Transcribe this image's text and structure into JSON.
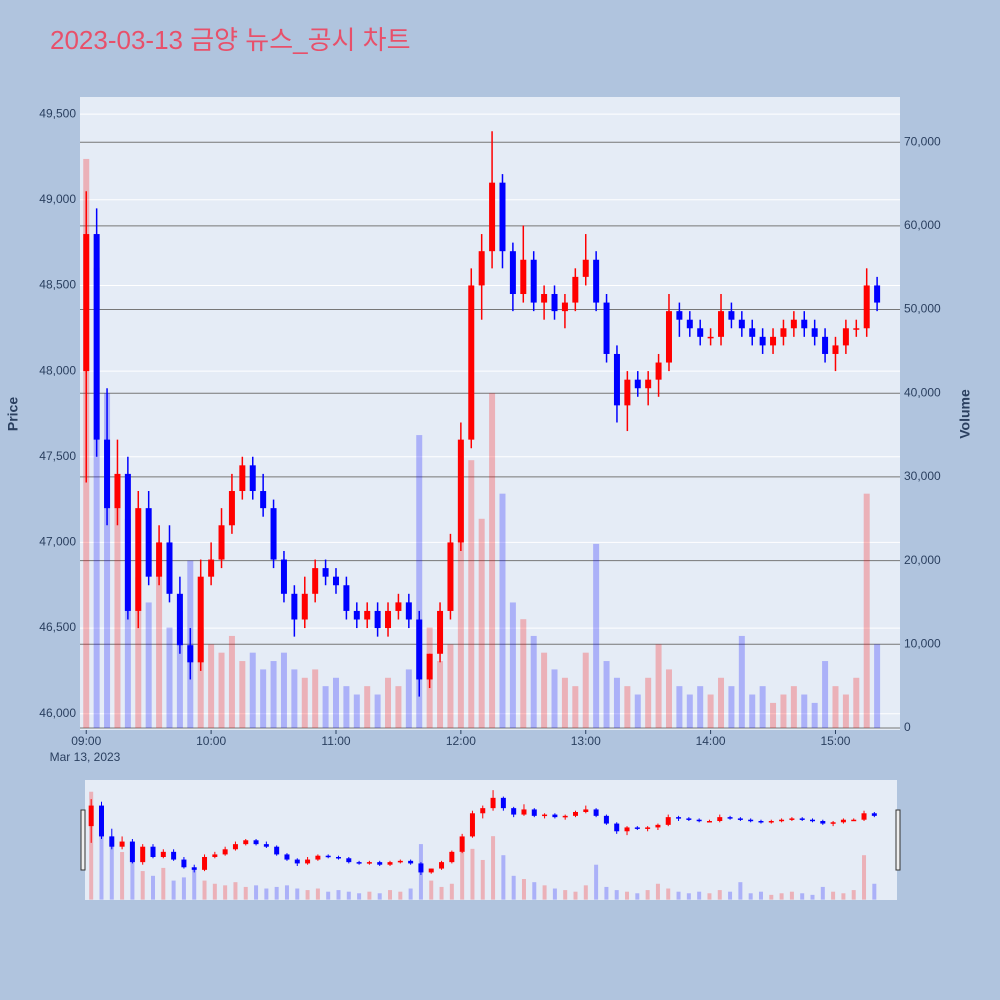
{
  "chart_data": {
    "type": "candlestick",
    "title": "2023-03-13 금양 뉴스_공시 차트",
    "y_label": "Price",
    "y2_label": "Volume",
    "x_date_label": "Mar 13, 2023",
    "increasing_color": "#ff0000",
    "decreasing_color": "#0000ff",
    "x": [
      "2023-03-13 09:00",
      "2023-03-13 09:05",
      "2023-03-13 09:10",
      "2023-03-13 09:15",
      "2023-03-13 09:20",
      "2023-03-13 09:25",
      "2023-03-13 09:30",
      "2023-03-13 09:35",
      "2023-03-13 09:40",
      "2023-03-13 09:45",
      "2023-03-13 09:50",
      "2023-03-13 09:55",
      "2023-03-13 10:00",
      "2023-03-13 10:05",
      "2023-03-13 10:10",
      "2023-03-13 10:15",
      "2023-03-13 10:20",
      "2023-03-13 10:25",
      "2023-03-13 10:30",
      "2023-03-13 10:35",
      "2023-03-13 10:40",
      "2023-03-13 10:45",
      "2023-03-13 10:50",
      "2023-03-13 10:55",
      "2023-03-13 11:00",
      "2023-03-13 11:05",
      "2023-03-13 11:10",
      "2023-03-13 11:15",
      "2023-03-13 11:20",
      "2023-03-13 11:25",
      "2023-03-13 11:30",
      "2023-03-13 11:35",
      "2023-03-13 11:40",
      "2023-03-13 11:45",
      "2023-03-13 11:50",
      "2023-03-13 11:55",
      "2023-03-13 12:00",
      "2023-03-13 12:05",
      "2023-03-13 12:10",
      "2023-03-13 12:15",
      "2023-03-13 12:20",
      "2023-03-13 12:25",
      "2023-03-13 12:30",
      "2023-03-13 12:35",
      "2023-03-13 12:40",
      "2023-03-13 12:45",
      "2023-03-13 12:50",
      "2023-03-13 12:55",
      "2023-03-13 13:00",
      "2023-03-13 13:05",
      "2023-03-13 13:10",
      "2023-03-13 13:15",
      "2023-03-13 13:20",
      "2023-03-13 13:25",
      "2023-03-13 13:30",
      "2023-03-13 13:35",
      "2023-03-13 13:40",
      "2023-03-13 13:45",
      "2023-03-13 13:50",
      "2023-03-13 13:55",
      "2023-03-13 14:00",
      "2023-03-13 14:05",
      "2023-03-13 14:10",
      "2023-03-13 14:15",
      "2023-03-13 14:20",
      "2023-03-13 14:25",
      "2023-03-13 14:30",
      "2023-03-13 14:35",
      "2023-03-13 14:40",
      "2023-03-13 14:45",
      "2023-03-13 14:50",
      "2023-03-13 14:55",
      "2023-03-13 15:00",
      "2023-03-13 15:05",
      "2023-03-13 15:10",
      "2023-03-13 15:15",
      "2023-03-13 15:20"
    ],
    "open": [
      48000,
      48800,
      47600,
      47200,
      47400,
      46600,
      47200,
      46800,
      47000,
      46700,
      46400,
      46300,
      46800,
      46900,
      47100,
      47300,
      47450,
      47300,
      47200,
      46900,
      46700,
      46550,
      46700,
      46850,
      46800,
      46750,
      46600,
      46550,
      46600,
      46500,
      46600,
      46650,
      46550,
      46200,
      46350,
      46600,
      47000,
      47600,
      48500,
      48700,
      49100,
      48700,
      48450,
      48650,
      48400,
      48450,
      48350,
      48400,
      48550,
      48650,
      48400,
      48100,
      47800,
      47950,
      47900,
      47950,
      48050,
      48350,
      48300,
      48250,
      48200,
      48200,
      48350,
      48300,
      48250,
      48200,
      48150,
      48200,
      48250,
      48300,
      48250,
      48200,
      48100,
      48150,
      48250,
      48250,
      48500
    ],
    "high": [
      49050,
      48950,
      47900,
      47600,
      47500,
      47300,
      47300,
      47100,
      47100,
      46800,
      46500,
      46900,
      47000,
      47200,
      47400,
      47500,
      47500,
      47400,
      47250,
      46950,
      46750,
      46800,
      46900,
      46900,
      46850,
      46800,
      46650,
      46650,
      46650,
      46650,
      46700,
      46700,
      46600,
      46350,
      46650,
      47050,
      47700,
      48600,
      48800,
      49400,
      49150,
      48750,
      48850,
      48700,
      48500,
      48500,
      48450,
      48600,
      48800,
      48700,
      48450,
      48150,
      48000,
      48000,
      48000,
      48100,
      48450,
      48400,
      48350,
      48300,
      48250,
      48450,
      48400,
      48350,
      48300,
      48250,
      48250,
      48300,
      48350,
      48350,
      48300,
      48250,
      48200,
      48300,
      48300,
      48600,
      48550
    ],
    "low": [
      47350,
      47500,
      47100,
      47100,
      46550,
      46500,
      46750,
      46750,
      46650,
      46350,
      46200,
      46250,
      46750,
      46850,
      47050,
      47250,
      47250,
      47150,
      46850,
      46650,
      46450,
      46500,
      46650,
      46750,
      46700,
      46550,
      46500,
      46500,
      46450,
      46450,
      46550,
      46500,
      46100,
      46150,
      46300,
      46550,
      46950,
      47550,
      48300,
      48600,
      48600,
      48350,
      48400,
      48350,
      48300,
      48300,
      48250,
      48350,
      48500,
      48350,
      48050,
      47700,
      47650,
      47850,
      47800,
      47850,
      48000,
      48200,
      48200,
      48150,
      48150,
      48150,
      48250,
      48200,
      48150,
      48100,
      48100,
      48150,
      48200,
      48200,
      48150,
      48050,
      48000,
      48100,
      48200,
      48200,
      48350
    ],
    "close": [
      48800,
      47600,
      47200,
      47400,
      46600,
      47200,
      46800,
      47000,
      46700,
      46400,
      46300,
      46800,
      46900,
      47100,
      47300,
      47450,
      47300,
      47200,
      46900,
      46700,
      46550,
      46700,
      46850,
      46800,
      46750,
      46600,
      46550,
      46600,
      46500,
      46600,
      46650,
      46550,
      46200,
      46350,
      46600,
      47000,
      47600,
      48500,
      48700,
      49100,
      48700,
      48450,
      48650,
      48400,
      48450,
      48350,
      48400,
      48550,
      48650,
      48400,
      48100,
      47800,
      47950,
      47900,
      47950,
      48050,
      48350,
      48300,
      48250,
      48200,
      48200,
      48350,
      48300,
      48250,
      48200,
      48150,
      48200,
      48250,
      48300,
      48250,
      48200,
      48100,
      48150,
      48250,
      48250,
      48500,
      48400
    ],
    "volume": [
      68000,
      55000,
      40000,
      30000,
      25000,
      18000,
      15000,
      20000,
      12000,
      14000,
      20000,
      12000,
      10000,
      9000,
      11000,
      8000,
      9000,
      7000,
      8000,
      9000,
      7000,
      6000,
      7000,
      5000,
      6000,
      5000,
      4000,
      5000,
      4000,
      6000,
      5000,
      7000,
      35000,
      12000,
      8000,
      10000,
      30000,
      32000,
      25000,
      40000,
      28000,
      15000,
      13000,
      11000,
      9000,
      7000,
      6000,
      5000,
      9000,
      22000,
      8000,
      6000,
      5000,
      4000,
      6000,
      10000,
      7000,
      5000,
      4000,
      5000,
      4000,
      6000,
      5000,
      11000,
      4000,
      5000,
      3000,
      4000,
      5000,
      4000,
      3000,
      8000,
      5000,
      4000,
      6000,
      28000,
      10000
    ],
    "xlim": [
      "2023-03-13 08:57",
      "2023-03-13 15:31"
    ],
    "xticks": [
      {
        "value": "2023-03-13 09:00",
        "label": "09:00"
      },
      {
        "value": "2023-03-13 10:00",
        "label": "10:00"
      },
      {
        "value": "2023-03-13 11:00",
        "label": "11:00"
      },
      {
        "value": "2023-03-13 12:00",
        "label": "12:00"
      },
      {
        "value": "2023-03-13 13:00",
        "label": "13:00"
      },
      {
        "value": "2023-03-13 14:00",
        "label": "14:00"
      },
      {
        "value": "2023-03-13 15:00",
        "label": "15:00"
      }
    ],
    "ylim": [
      45905,
      49600
    ],
    "yticks": [
      {
        "value": 46000,
        "label": "46,000"
      },
      {
        "value": 46500,
        "label": "46,500"
      },
      {
        "value": 47000,
        "label": "47,000"
      },
      {
        "value": 47500,
        "label": "47,500"
      },
      {
        "value": 48000,
        "label": "48,000"
      },
      {
        "value": 48500,
        "label": "48,500"
      },
      {
        "value": 49000,
        "label": "49,000"
      },
      {
        "value": 49500,
        "label": "49,500"
      }
    ],
    "y2lim": [
      -240,
      75400
    ],
    "y2ticks": [
      0,
      {
        "value": 10000,
        "label": "10,000"
      },
      {
        "value": 20000,
        "label": "20,000"
      },
      {
        "value": 30000,
        "label": "30,000"
      },
      {
        "value": 40000,
        "label": "40,000"
      },
      {
        "value": 50000,
        "label": "50,000"
      },
      {
        "value": 60000,
        "label": "60,000"
      },
      {
        "value": 70000,
        "label": "70,000"
      }
    ],
    "grid": true,
    "range_slider": true
  }
}
